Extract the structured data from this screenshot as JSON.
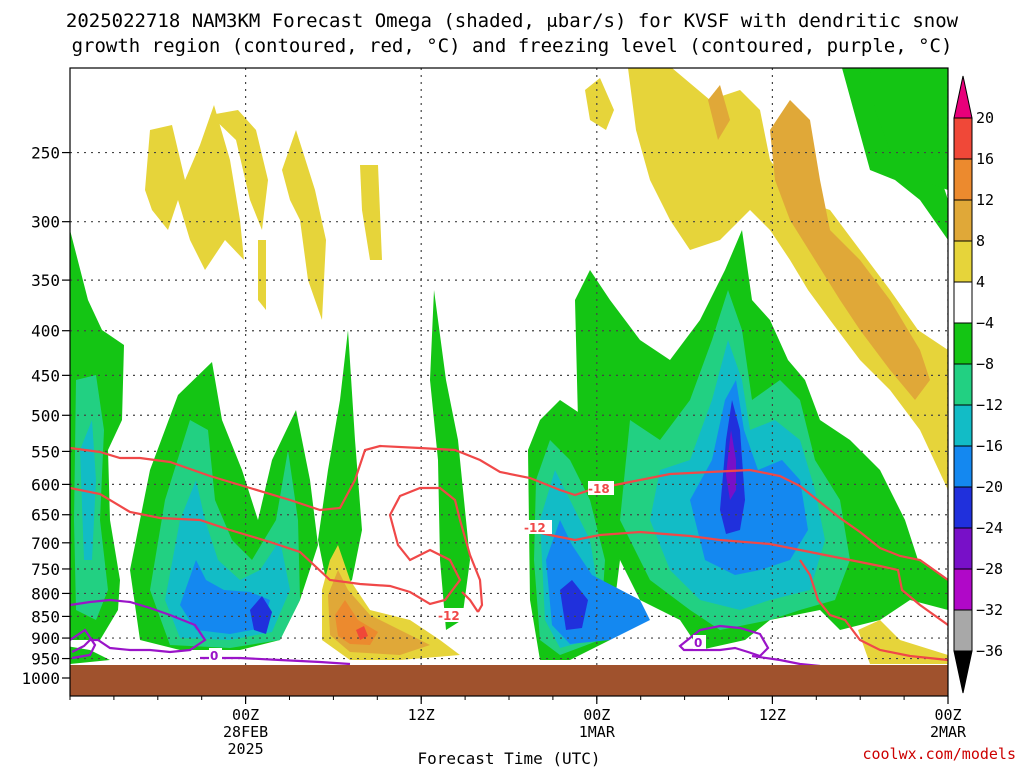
{
  "chart_data": {
    "type": "heatmap",
    "title_line1": "2025022718 NAM3KM Forecast Omega (shaded, μbar/s) for KVSF with dendritic snow",
    "title_line2": "growth region (contoured, red, °C) and freezing level (contoured, purple, °C)",
    "xlabel": "Forecast Time (UTC)",
    "credit": "coolwx.com/models",
    "y_axis": {
      "levels": [
        250,
        300,
        350,
        400,
        450,
        500,
        550,
        600,
        650,
        700,
        750,
        800,
        850,
        900,
        950,
        1000
      ],
      "labels": [
        "250",
        "300",
        "350",
        "400",
        "450",
        "500",
        "550",
        "600",
        "650",
        "700",
        "750",
        "800",
        "850",
        "900",
        "950",
        "1000"
      ],
      "range": [
        200,
        1000
      ]
    },
    "x_axis": {
      "range_hours": [
        -6,
        54
      ],
      "ticks": [
        {
          "hour": 6,
          "lines": [
            "00Z",
            "28FEB",
            "2025"
          ]
        },
        {
          "hour": 18,
          "lines": [
            "12Z"
          ]
        },
        {
          "hour": 30,
          "lines": [
            "00Z",
            "1MAR"
          ]
        },
        {
          "hour": 42,
          "lines": [
            "12Z"
          ]
        },
        {
          "hour": 54,
          "lines": [
            "00Z",
            "2MAR"
          ]
        }
      ],
      "grid_hours": [
        6,
        18,
        30,
        42,
        54
      ]
    },
    "colorbar": {
      "labels": [
        "20",
        "16",
        "12",
        "8",
        "4",
        "−4",
        "−8",
        "−12",
        "−16",
        "−20",
        "−24",
        "−28",
        "−32",
        "−36"
      ],
      "colors": [
        "#e8007a",
        "#f04838",
        "#ec8a2e",
        "#e0a838",
        "#e6d43a",
        "#ffffff",
        "#14c514",
        "#22d082",
        "#12bcc6",
        "#1488f0",
        "#2030dc",
        "#7810c8",
        "#b008c8",
        "#a8a8a8",
        "#000000"
      ]
    },
    "contour_labels": [
      "-18",
      "-12",
      "-12",
      "0",
      "0"
    ],
    "grid": true
  }
}
